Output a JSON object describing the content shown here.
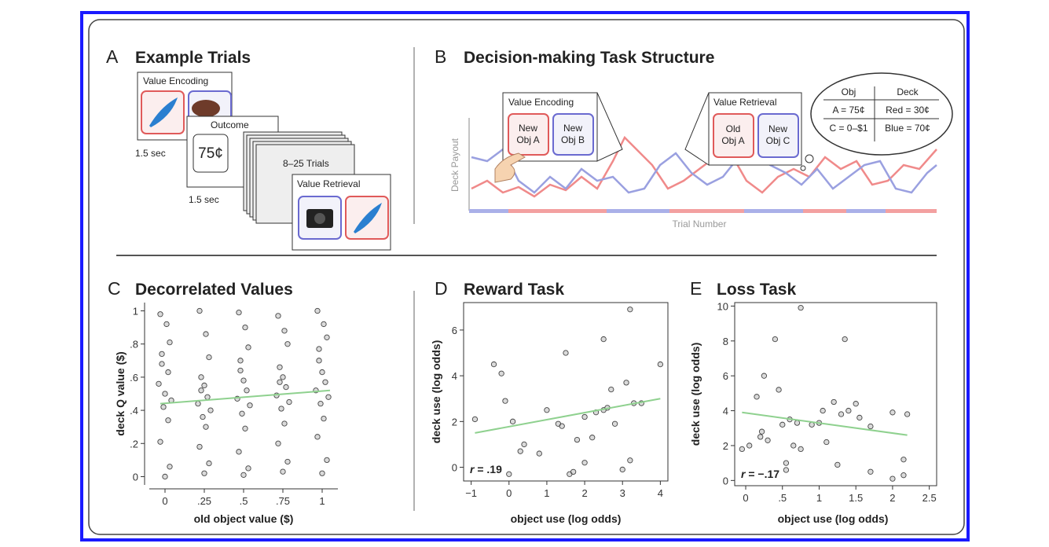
{
  "panels": {
    "a": {
      "letter": "A",
      "title": "Example Trials",
      "cards": [
        "Value Encoding",
        "Outcome",
        "8–25 Trials",
        "Value Retrieval"
      ],
      "outcome_value": "75¢",
      "durations": [
        "1.5 sec",
        "1.5 sec"
      ]
    },
    "b": {
      "letter": "B",
      "title": "Decision-making Task Structure",
      "y_label": "Deck Payout",
      "x_label": "Trial Number",
      "encoding": {
        "title": "Value Encoding",
        "options": [
          [
            "New",
            "Obj A"
          ],
          [
            "New",
            "Obj B"
          ]
        ]
      },
      "retrieval": {
        "title": "Value Retrieval",
        "options": [
          [
            "Old",
            "Obj A"
          ],
          [
            "New",
            "Obj C"
          ]
        ]
      },
      "thought": {
        "header": [
          "Obj",
          "Deck"
        ],
        "rows": [
          [
            "A = 75¢",
            "Red = 30¢"
          ],
          [
            "C = 0–$1",
            "Blue = 70¢"
          ]
        ]
      }
    }
  },
  "chart_data": [
    {
      "type": "scatter",
      "panel": "C",
      "title": "Decorrelated Values",
      "x_label": "old object value ($)",
      "y_label": "deck Q value ($)",
      "xlim": [
        -0.1,
        1.1
      ],
      "ylim": [
        -0.05,
        1.05
      ],
      "xticks": [
        0,
        {
          "value": 0.25,
          "label": ".25"
        },
        {
          "value": 0.5,
          "label": ".5"
        },
        {
          "value": 0.75,
          "label": ".75"
        },
        1
      ],
      "yticks": [
        0,
        {
          "value": 0.2,
          "label": ".2"
        },
        {
          "value": 0.4,
          "label": ".4"
        },
        {
          "value": 0.6,
          "label": ".6"
        },
        {
          "value": 0.8,
          "label": ".8"
        },
        1
      ],
      "point_color": "#444444",
      "x": [
        -0.03,
        0.01,
        0.03,
        -0.02,
        0.02,
        -0.04,
        0.0,
        0.04,
        -0.01,
        0.02,
        -0.03,
        0.03,
        0.0,
        -0.02,
        0.22,
        0.26,
        0.28,
        0.23,
        0.25,
        0.27,
        0.21,
        0.29,
        0.24,
        0.26,
        0.22,
        0.28,
        0.25,
        0.23,
        0.47,
        0.51,
        0.53,
        0.48,
        0.5,
        0.52,
        0.46,
        0.54,
        0.49,
        0.51,
        0.47,
        0.53,
        0.5,
        0.48,
        0.72,
        0.76,
        0.78,
        0.73,
        0.75,
        0.77,
        0.71,
        0.79,
        0.74,
        0.76,
        0.72,
        0.78,
        0.75,
        0.73,
        0.97,
        1.01,
        1.03,
        0.98,
        1.0,
        1.02,
        0.96,
        1.04,
        0.99,
        1.01,
        0.97,
        1.03,
        1.0,
        0.98
      ],
      "y": [
        0.98,
        0.92,
        0.81,
        0.74,
        0.63,
        0.56,
        0.5,
        0.46,
        0.42,
        0.34,
        0.21,
        0.06,
        0.0,
        0.68,
        1.0,
        0.86,
        0.72,
        0.6,
        0.55,
        0.48,
        0.44,
        0.4,
        0.36,
        0.3,
        0.18,
        0.08,
        0.02,
        0.52,
        0.99,
        0.9,
        0.78,
        0.64,
        0.58,
        0.52,
        0.47,
        0.43,
        0.38,
        0.29,
        0.15,
        0.05,
        0.01,
        0.7,
        0.97,
        0.88,
        0.8,
        0.66,
        0.6,
        0.54,
        0.49,
        0.45,
        0.41,
        0.32,
        0.2,
        0.09,
        0.03,
        0.57,
        1.0,
        0.92,
        0.84,
        0.7,
        0.63,
        0.57,
        0.52,
        0.48,
        0.44,
        0.35,
        0.24,
        0.1,
        0.02,
        0.77
      ],
      "trend": {
        "color": "#8fd18f",
        "x": [
          -0.03,
          1.05
        ],
        "y": [
          0.44,
          0.52
        ]
      }
    },
    {
      "type": "scatter",
      "panel": "D",
      "title": "Reward Task",
      "x_label": "object use (log odds)",
      "y_label": "deck use (log odds)",
      "xlim": [
        -1.2,
        4.2
      ],
      "ylim": [
        -0.6,
        7.2
      ],
      "xticks": [
        {
          "value": -1,
          "label": "−1"
        },
        0,
        1,
        2,
        3,
        4
      ],
      "yticks": [
        0,
        2,
        4,
        6
      ],
      "annotation": [
        "r",
        " = .19"
      ],
      "point_color": "#444444",
      "x": [
        -0.9,
        -0.4,
        -0.2,
        -0.1,
        0,
        0.1,
        0.3,
        0.4,
        0.8,
        1.0,
        1.3,
        1.4,
        1.5,
        1.6,
        1.7,
        1.8,
        2.0,
        2.0,
        2.2,
        2.3,
        2.5,
        2.5,
        2.6,
        2.7,
        2.8,
        3.1,
        3.2,
        3.2,
        3.3,
        3.5,
        4.0,
        3.0
      ],
      "y": [
        2.1,
        4.5,
        4.1,
        2.9,
        -0.3,
        2.0,
        0.7,
        1.0,
        0.6,
        2.5,
        1.9,
        1.8,
        5.0,
        -0.3,
        -0.2,
        1.2,
        0.2,
        2.2,
        1.3,
        2.4,
        2.5,
        5.6,
        2.6,
        3.4,
        1.9,
        3.7,
        6.9,
        0.3,
        2.8,
        2.8,
        4.5,
        -0.1
      ],
      "trend": {
        "color": "#8fd18f",
        "x": [
          -0.9,
          4.0
        ],
        "y": [
          1.5,
          3.0
        ]
      }
    },
    {
      "type": "scatter",
      "panel": "E",
      "title": "Loss Task",
      "x_label": "object use (log odds)",
      "y_label": "deck use (log odds)",
      "xlim": [
        -0.15,
        2.6
      ],
      "ylim": [
        -0.3,
        10.2
      ],
      "xticks": [
        0,
        {
          "value": 0.5,
          "label": ".5"
        },
        1,
        1.5,
        2,
        2.5
      ],
      "yticks": [
        0,
        2,
        4,
        6,
        8,
        10
      ],
      "annotation": [
        "r",
        " = −.17"
      ],
      "point_color": "#444444",
      "x": [
        -0.05,
        0.05,
        0.15,
        0.2,
        0.22,
        0.25,
        0.3,
        0.4,
        0.45,
        0.5,
        0.55,
        0.55,
        0.6,
        0.65,
        0.7,
        0.75,
        0.75,
        0.9,
        1.0,
        1.05,
        1.1,
        1.2,
        1.25,
        1.3,
        1.35,
        1.4,
        1.5,
        1.55,
        1.7,
        1.7,
        2.0,
        2.0,
        2.15,
        2.15,
        2.2
      ],
      "y": [
        1.8,
        2.0,
        4.8,
        2.5,
        2.8,
        6.0,
        2.3,
        8.1,
        5.2,
        3.2,
        1.0,
        0.6,
        3.5,
        2.0,
        3.3,
        9.9,
        1.8,
        3.2,
        3.3,
        4.0,
        2.2,
        4.5,
        0.9,
        3.8,
        8.1,
        4.0,
        4.4,
        3.6,
        0.5,
        3.1,
        0.1,
        3.9,
        1.2,
        0.3,
        3.8
      ],
      "trend": {
        "color": "#8fd18f",
        "x": [
          -0.05,
          2.2
        ],
        "y": [
          3.9,
          2.6
        ]
      }
    }
  ]
}
